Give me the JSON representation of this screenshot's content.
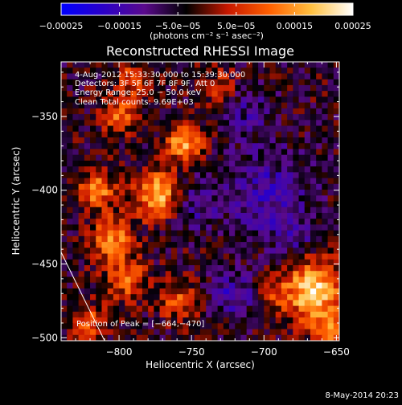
{
  "chart_data": {
    "type": "heatmap",
    "title": "Reconstructed RHESSI Image",
    "xlabel": "Heliocentric X (arcsec)",
    "ylabel": "Heliocentric Y (arcsec)",
    "xlim": [
      -840,
      -648
    ],
    "ylim": [
      -502,
      -313
    ],
    "x_ticks": [
      -800,
      -750,
      -700,
      -650
    ],
    "x_tick_labels": [
      "−800",
      "−750",
      "−700",
      "−650"
    ],
    "y_ticks": [
      -350,
      -400,
      -450,
      -500
    ],
    "y_tick_labels": [
      "−350",
      "−400",
      "−450",
      "−500"
    ],
    "colorbar": {
      "min": -0.00025,
      "max": 0.00025,
      "tick_values": [
        -0.00025,
        -0.00015,
        -5e-05,
        5e-05,
        0.00015,
        0.00025
      ],
      "tick_labels": [
        "−0.00025",
        "−0.00015",
        "−5.0e−05",
        "5.0e−05",
        "0.00015",
        "0.00025"
      ],
      "units_label": "(photons cm⁻² s⁻¹ asec⁻²)",
      "colors": [
        "#0000ff",
        "#2a00c8",
        "#5a0a8c",
        "#000000",
        "#c81800",
        "#ff6000",
        "#ffc040",
        "#ffffff"
      ]
    },
    "annotations": {
      "time": "4-Aug-2012 15:33:30.000 to 15:39:30.000",
      "detectors": "Detectors: 3F 5F 6F 7F 8F 9F, Att 0",
      "energy": "Energy Range: 25.0 − 50.0 keV",
      "clean": "Clean     Total counts: 9.69E+03",
      "peak": "Position of Peak = [−664,−470]"
    },
    "peak": {
      "x": -664,
      "y": -470
    },
    "hot_spots": [
      {
        "x": -666,
        "y": -468,
        "value": 0.00025,
        "spread": 14
      },
      {
        "x": -773,
        "y": -403,
        "value": 0.00022,
        "spread": 11
      },
      {
        "x": -755,
        "y": -368,
        "value": 0.0002,
        "spread": 9
      },
      {
        "x": -815,
        "y": -400,
        "value": 0.00016,
        "spread": 9
      },
      {
        "x": -805,
        "y": -432,
        "value": 0.00017,
        "spread": 10
      },
      {
        "x": -795,
        "y": -460,
        "value": 0.00014,
        "spread": 10
      },
      {
        "x": -760,
        "y": -475,
        "value": 0.00012,
        "spread": 9
      },
      {
        "x": -800,
        "y": -350,
        "value": 0.00013,
        "spread": 9
      },
      {
        "x": -790,
        "y": -325,
        "value": 0.00012,
        "spread": 8
      },
      {
        "x": -730,
        "y": -330,
        "value": 9e-05,
        "spread": 8
      },
      {
        "x": -820,
        "y": -490,
        "value": 0.00012,
        "spread": 8
      },
      {
        "x": -695,
        "y": -470,
        "value": 7e-05,
        "spread": 8
      },
      {
        "x": -655,
        "y": -495,
        "value": 0.00015,
        "spread": 8
      }
    ],
    "cold_spots": [
      {
        "x": -700,
        "y": -400,
        "value": -9e-05,
        "spread": 22
      },
      {
        "x": -750,
        "y": -410,
        "value": -7e-05,
        "spread": 12
      },
      {
        "x": -720,
        "y": -470,
        "value": -0.00011,
        "spread": 10
      },
      {
        "x": -680,
        "y": -430,
        "value": -6e-05,
        "spread": 12
      },
      {
        "x": -710,
        "y": -345,
        "value": -6e-05,
        "spread": 12
      }
    ],
    "limb_line": {
      "from": {
        "x": -840,
        "y": -442
      },
      "to": {
        "x": -810,
        "y": -502
      }
    }
  },
  "footer": {
    "date_stamp": "8-May-2014 20:23"
  }
}
